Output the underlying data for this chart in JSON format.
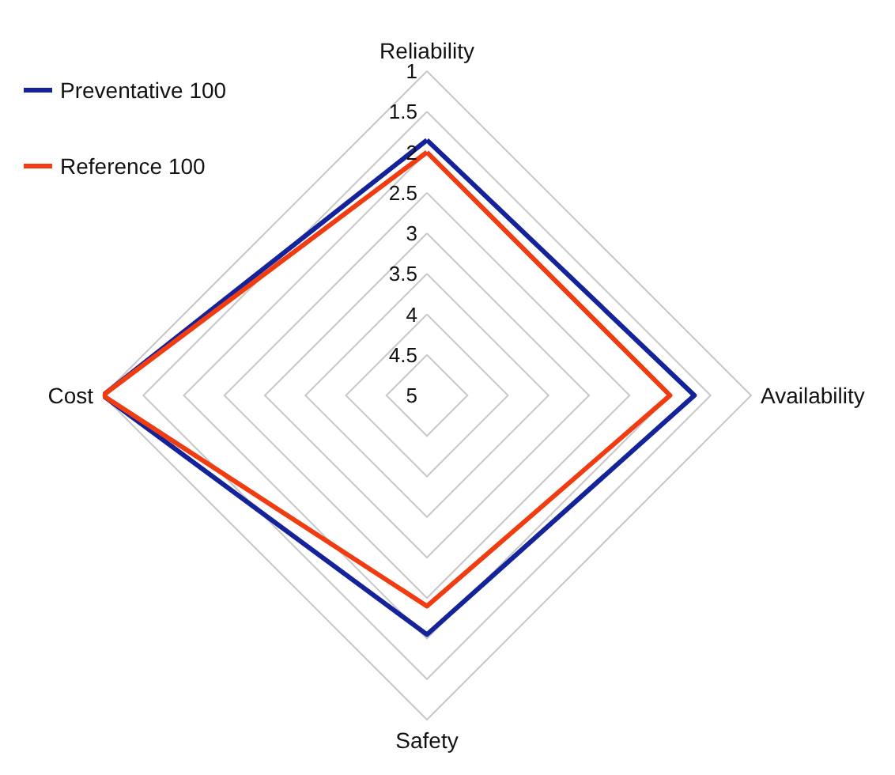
{
  "chart_data": {
    "type": "radar",
    "categories": [
      "Reliability",
      "Availability",
      "Safety",
      "Cost"
    ],
    "ylim": [
      5,
      1
    ],
    "yticks": [
      1,
      1.5,
      2,
      2.5,
      3,
      3.5,
      4,
      4.5,
      5
    ],
    "series": [
      {
        "name": "Preventative 100",
        "color": "#14239a",
        "values": [
          1.85,
          1.7,
          2.05,
          1
        ]
      },
      {
        "name": "Reference 100",
        "color": "#f03c10",
        "values": [
          2,
          2,
          2.4,
          1
        ]
      }
    ],
    "legend": "top left",
    "marker": "none",
    "line_style": "solid",
    "grid": true
  }
}
